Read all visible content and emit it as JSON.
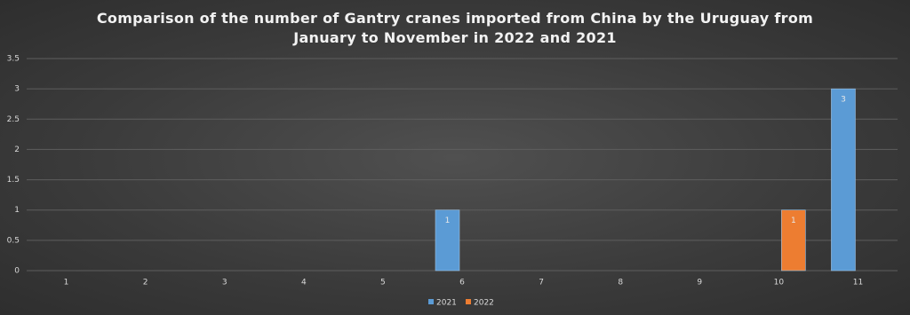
{
  "chart_data": {
    "type": "bar",
    "title": "Comparison of the number of Gantry cranes imported from China by the Uruguay from January to November in 2022 and 2021",
    "categories": [
      "1",
      "2",
      "3",
      "4",
      "5",
      "6",
      "7",
      "8",
      "9",
      "10",
      "11"
    ],
    "series": [
      {
        "name": "2021",
        "color": "#5b9bd5",
        "values": [
          0,
          0,
          0,
          0,
          0,
          1,
          0,
          0,
          0,
          0,
          3
        ]
      },
      {
        "name": "2022",
        "color": "#ed7d31",
        "values": [
          0,
          0,
          0,
          0,
          0,
          0,
          0,
          0,
          0,
          1,
          0
        ]
      }
    ],
    "ylim": [
      0,
      3.5
    ],
    "yticks": [
      0,
      0.5,
      1,
      1.5,
      2,
      2.5,
      3,
      3.5
    ],
    "grid": true,
    "legend": "bottom"
  }
}
